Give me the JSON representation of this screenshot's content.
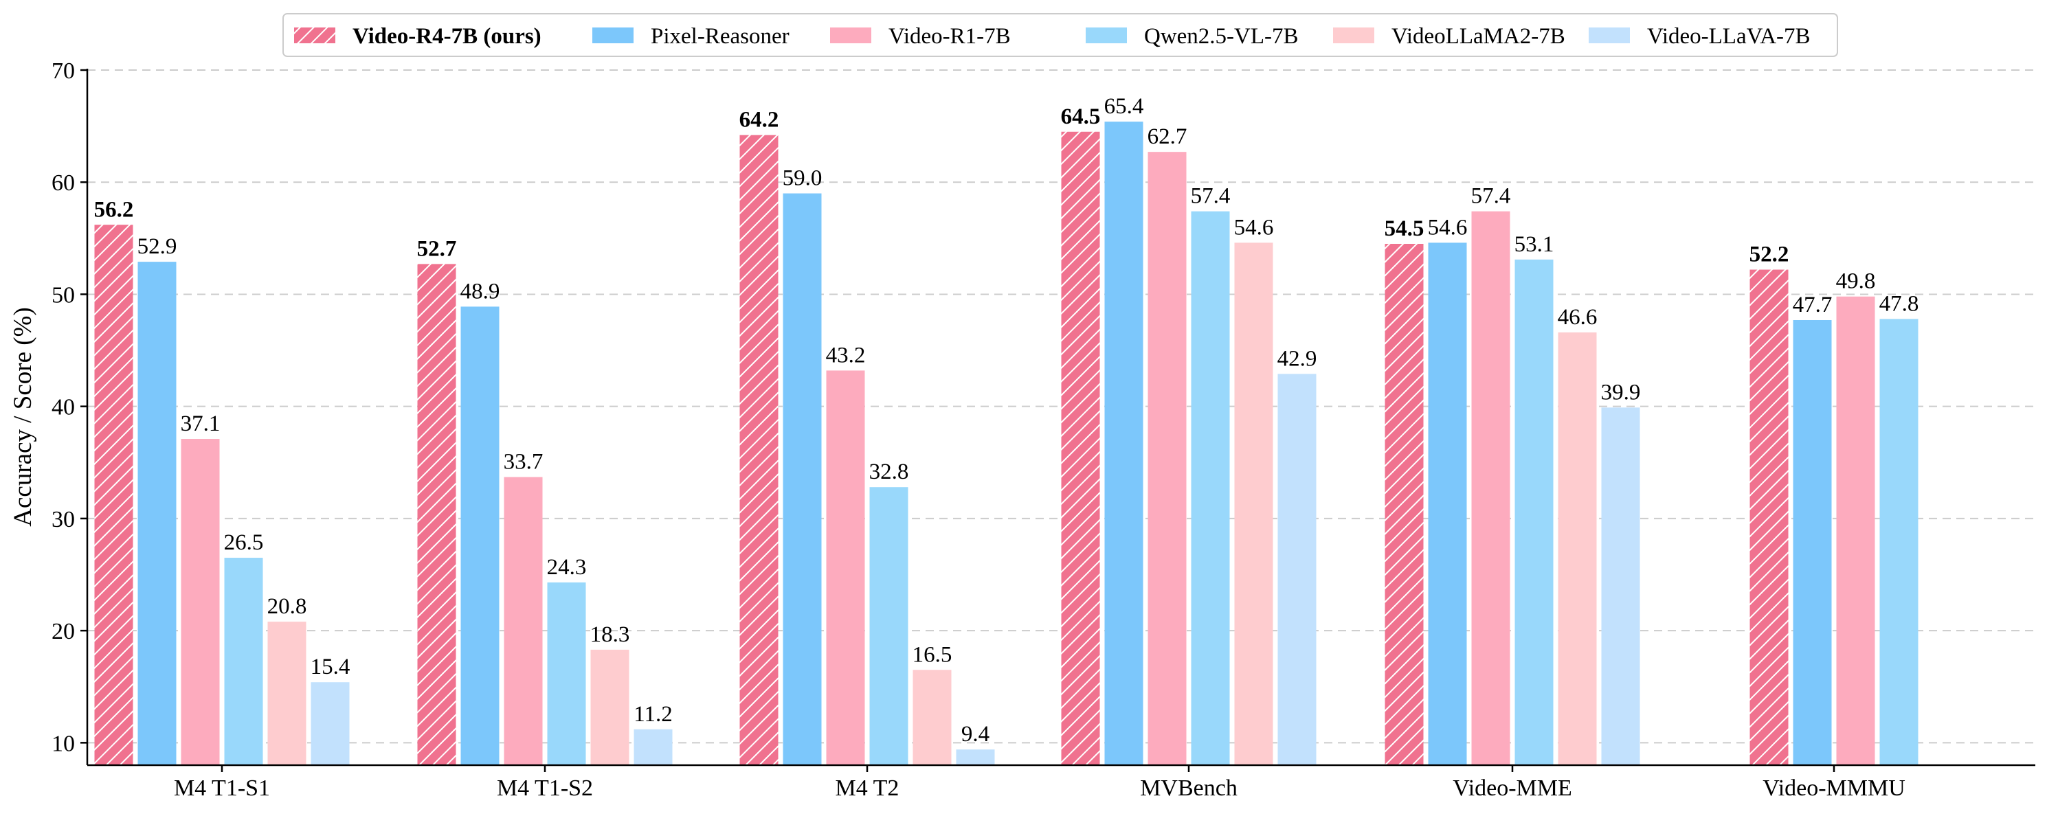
{
  "chart_data": {
    "type": "bar",
    "title": "",
    "xlabel": "",
    "ylabel": "Accuracy / Score (%)",
    "ylim": [
      8,
      70
    ],
    "yticks": [
      10,
      20,
      30,
      40,
      50,
      60,
      70
    ],
    "grid": "y-dashed",
    "legend_position": "top-center",
    "categories": [
      "M4 T1-S1",
      "M4 T1-S2",
      "M4 T2",
      "MVBench",
      "Video-MME",
      "Video-MMMU"
    ],
    "series": [
      {
        "name": "Video-R4-7B (ours)",
        "color": "#f0728f",
        "hatch": true,
        "bold": true,
        "values": [
          56.2,
          52.7,
          64.2,
          64.5,
          54.5,
          52.2
        ],
        "labels": [
          "56.2",
          "52.7",
          "64.2",
          "64.5",
          "54.5",
          "52.2"
        ]
      },
      {
        "name": "Pixel-Reasoner",
        "color": "#7cc7fb",
        "hatch": false,
        "bold": false,
        "values": [
          52.9,
          48.9,
          59.0,
          65.4,
          54.6,
          47.7
        ],
        "labels": [
          "52.9",
          "48.9",
          "59.0",
          "65.4",
          "54.6",
          "47.7"
        ]
      },
      {
        "name": "Video-R1-7B",
        "color": "#fdabbe",
        "hatch": false,
        "bold": false,
        "values": [
          37.1,
          33.7,
          43.2,
          62.7,
          57.4,
          49.8
        ],
        "labels": [
          "37.1",
          "33.7",
          "43.2",
          "62.7",
          "57.4",
          "49.8"
        ]
      },
      {
        "name": "Qwen2.5-VL-7B",
        "color": "#99d8fb",
        "hatch": false,
        "bold": false,
        "values": [
          26.5,
          24.3,
          32.8,
          57.4,
          53.1,
          47.8
        ],
        "labels": [
          "26.5",
          "24.3",
          "32.8",
          "57.4",
          "53.1",
          "47.8"
        ]
      },
      {
        "name": "VideoLLaMA2-7B",
        "color": "#fecccf",
        "hatch": false,
        "bold": false,
        "values": [
          20.8,
          18.3,
          16.5,
          54.6,
          46.6,
          null
        ],
        "labels": [
          "20.8",
          "18.3",
          "16.5",
          "54.6",
          "46.6",
          null
        ]
      },
      {
        "name": "Video-LLaVA-7B",
        "color": "#c2e1fd",
        "hatch": false,
        "bold": false,
        "values": [
          15.4,
          11.2,
          9.4,
          42.9,
          39.9,
          null
        ],
        "labels": [
          "15.4",
          "11.2",
          "9.4",
          "42.9",
          "39.9",
          null
        ]
      }
    ]
  }
}
